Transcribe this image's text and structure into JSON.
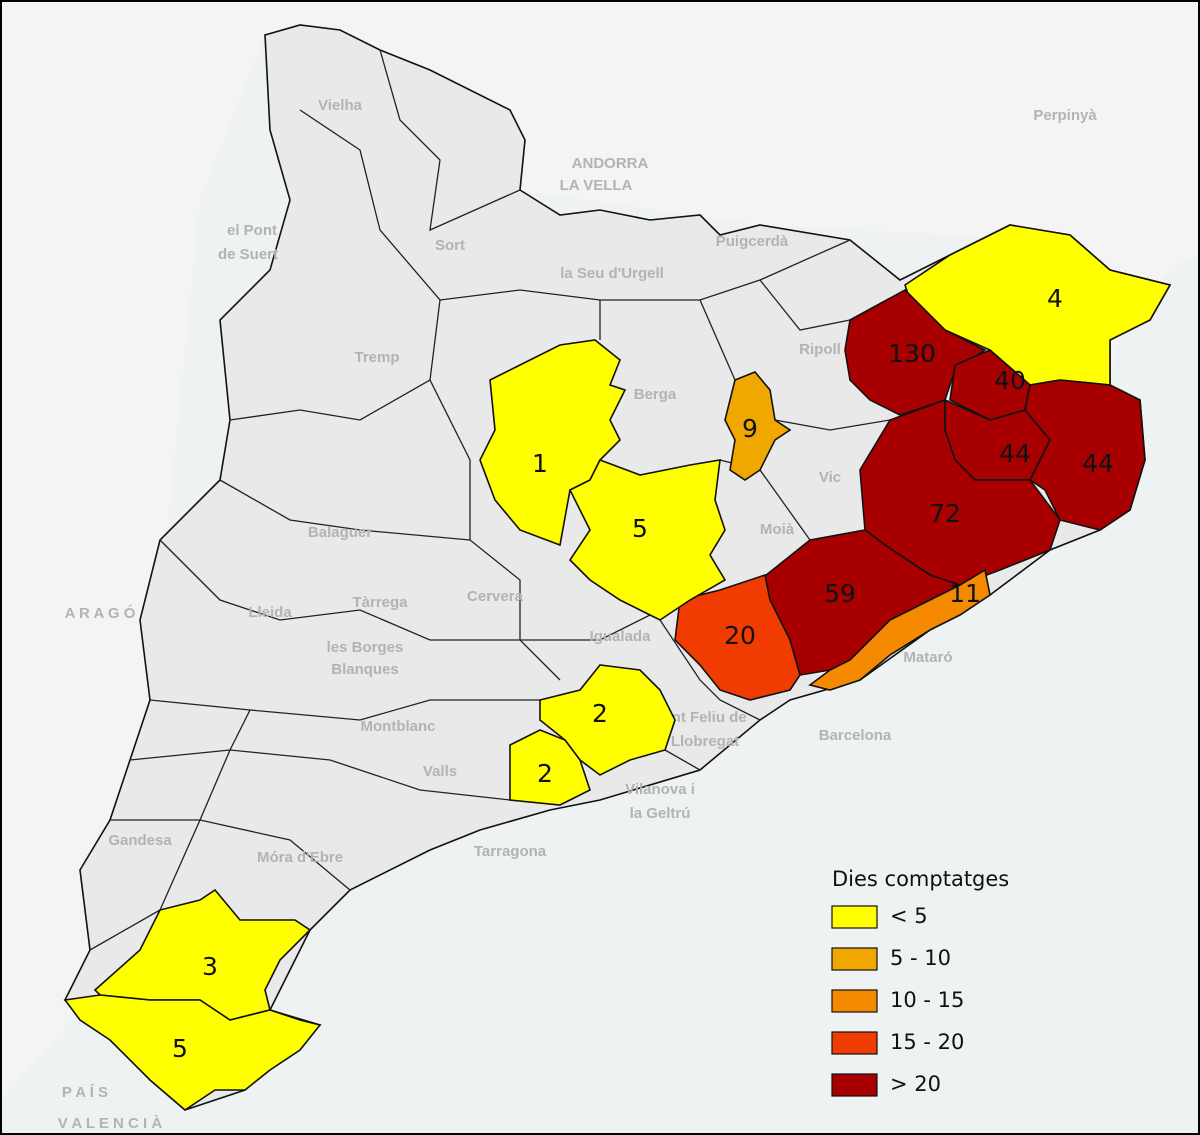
{
  "legend": {
    "title": "Dies comptatges",
    "items": [
      {
        "label": "< 5",
        "color": "#ffff00"
      },
      {
        "label": "5 - 10",
        "color": "#f0a800"
      },
      {
        "label": "10 - 15",
        "color": "#f58a00"
      },
      {
        "label": "15 - 20",
        "color": "#f03c00"
      },
      {
        "label": "> 20",
        "color": "#a80000"
      }
    ]
  },
  "regions": [
    {
      "value": 4,
      "color": "#ffff00"
    },
    {
      "value": 130,
      "color": "#a80000"
    },
    {
      "value": 40,
      "color": "#a80000"
    },
    {
      "value": 44,
      "color": "#a80000"
    },
    {
      "value": 44,
      "color": "#a80000"
    },
    {
      "value": 72,
      "color": "#a80000"
    },
    {
      "value": 59,
      "color": "#a80000"
    },
    {
      "value": 11,
      "color": "#f58a00"
    },
    {
      "value": 20,
      "color": "#f03c00"
    },
    {
      "value": 9,
      "color": "#f0a800"
    },
    {
      "value": 1,
      "color": "#ffff00"
    },
    {
      "value": 5,
      "color": "#ffff00"
    },
    {
      "value": 2,
      "color": "#ffff00"
    },
    {
      "value": 2,
      "color": "#ffff00"
    },
    {
      "value": 3,
      "color": "#ffff00"
    },
    {
      "value": 5,
      "color": "#ffff00"
    }
  ],
  "places": [
    "Vielha",
    "Perpinyà",
    "ANDORRA",
    "LA VELLA",
    "el Pont",
    "de Suert",
    "Sort",
    "la Seu d'Urgell",
    "Puigcerdà",
    "Tremp",
    "Ripoll",
    "Berga",
    "Vic",
    "Moià",
    "Balaguer",
    "Lleida",
    "Tàrrega",
    "Cervera",
    "Igualada",
    "les Borges",
    "Blanques",
    "Mataró",
    "Barcelona",
    "Sant Feliu de",
    "Llobregat",
    "Montblanc",
    "Valls",
    "Vilanova i",
    "la Geltrú",
    "Tarragona",
    "Móra d'Ebre",
    "Gandesa",
    "A R A G Ó",
    "P A Í S",
    "V A L E N C I À"
  ]
}
